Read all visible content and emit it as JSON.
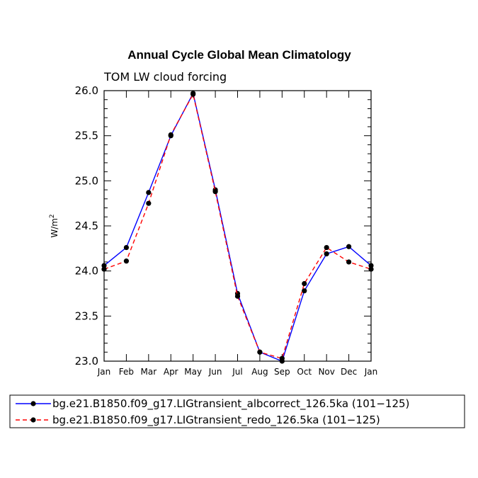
{
  "chart_data": {
    "type": "line",
    "title": "Annual Cycle Global Mean Climatology",
    "subtitle": "TOM LW cloud forcing",
    "xlabel": "",
    "ylabel": "W/m",
    "ylabel_superscript": "2",
    "categories": [
      "Jan",
      "Feb",
      "Mar",
      "Apr",
      "May",
      "Jun",
      "Jul",
      "Aug",
      "Sep",
      "Oct",
      "Nov",
      "Dec",
      "Jan"
    ],
    "ylim": [
      23.0,
      26.0
    ],
    "yticks": [
      "23.0",
      "23.5",
      "24.0",
      "24.5",
      "25.0",
      "25.5",
      "26.0"
    ],
    "series": [
      {
        "name": "bg.e21.B1850.f09_g17.LIGtransient_albcorrect_126.5ka (101−125)",
        "color": "#0000ff",
        "dash": "solid",
        "values": [
          24.06,
          24.26,
          24.87,
          25.5,
          25.97,
          24.9,
          23.75,
          23.1,
          23.0,
          23.78,
          24.19,
          24.27,
          24.06
        ]
      },
      {
        "name": "bg.e21.B1850.f09_g17.LIGtransient_redo_126.5ka (101−125)",
        "color": "#ff0000",
        "dash": "dashed",
        "values": [
          24.02,
          24.11,
          24.75,
          25.51,
          25.96,
          24.88,
          23.72,
          23.1,
          23.03,
          23.86,
          24.26,
          24.1,
          24.02
        ]
      }
    ]
  }
}
